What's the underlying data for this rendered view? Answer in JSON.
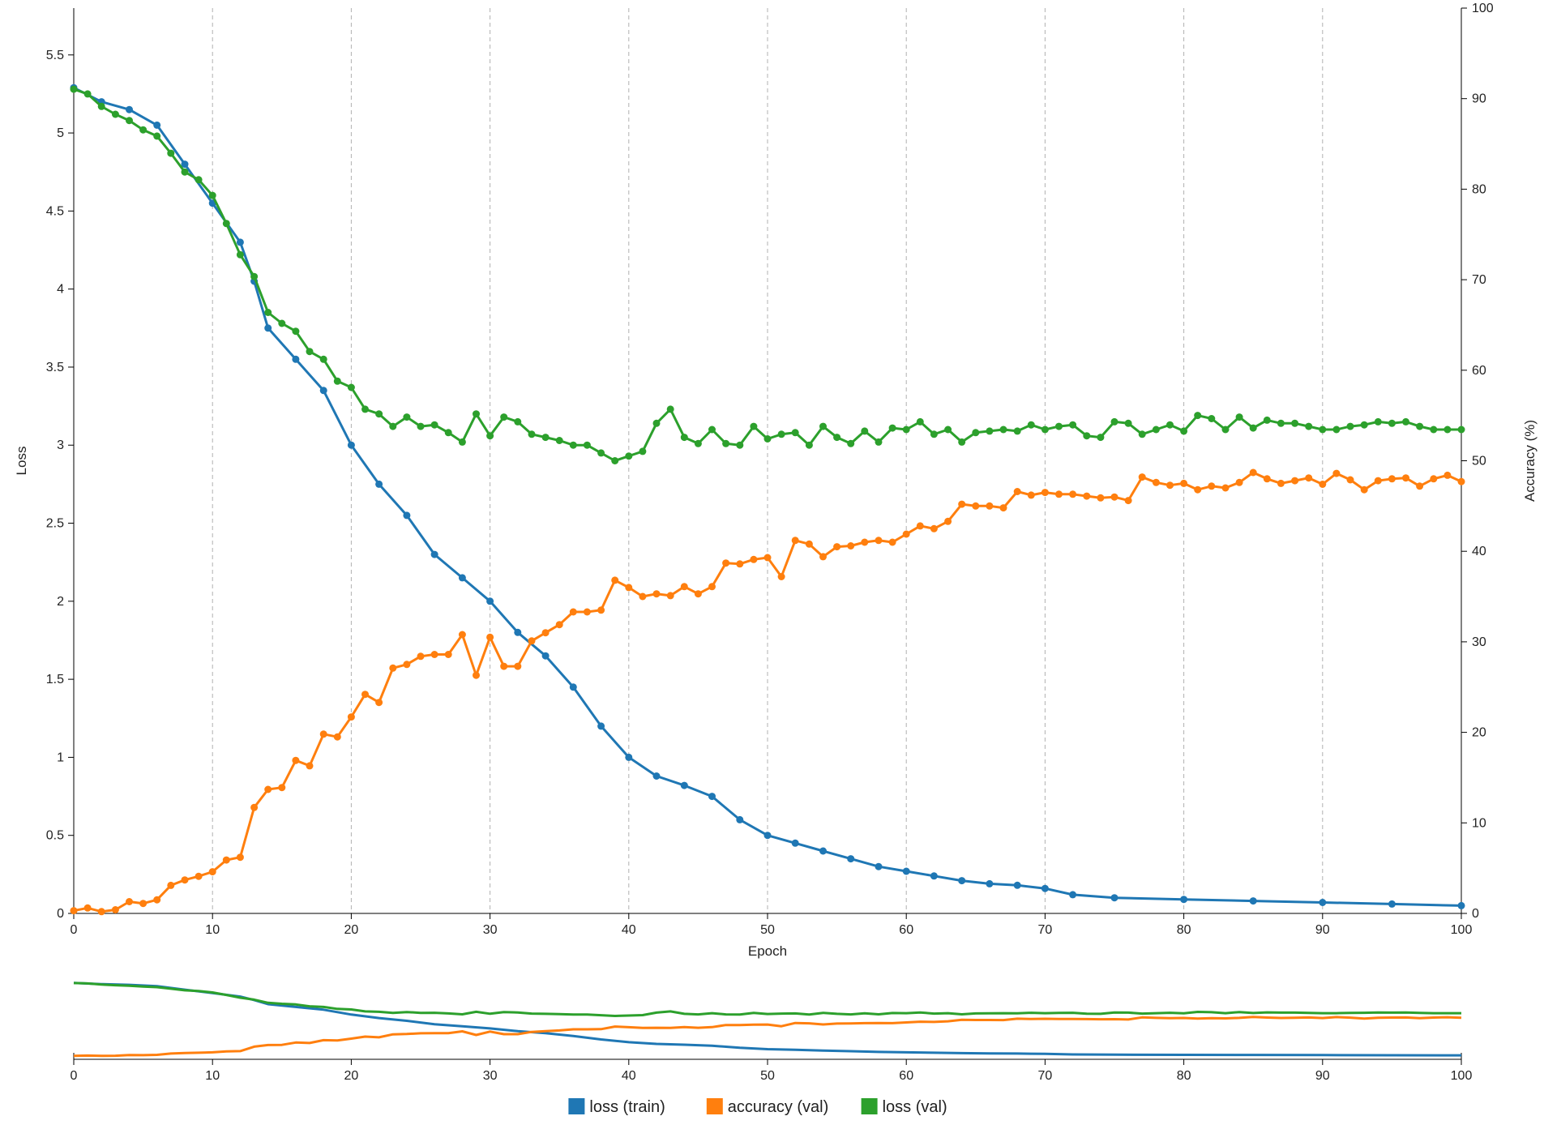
{
  "chart_data": {
    "type": "line",
    "xlabel": "Epoch",
    "ylabel_left": "Loss",
    "ylabel_right": "Accuracy (%)",
    "xlim": [
      0,
      100
    ],
    "ylim_left": [
      0,
      5.8
    ],
    "ylim_right": [
      0,
      100
    ],
    "x_ticks": [
      0,
      10,
      20,
      30,
      40,
      50,
      60,
      70,
      80,
      90,
      100
    ],
    "y_left_ticks": [
      0,
      0.5,
      1,
      1.5,
      2,
      2.5,
      3,
      3.5,
      4,
      4.5,
      5,
      5.5
    ],
    "y_left_tick_labels": [
      "0",
      "0.5",
      "1",
      "1.5",
      "2",
      "2.5",
      "3",
      "3.5",
      "4",
      "4.5",
      "5",
      "5.5"
    ],
    "y_right_ticks": [
      0,
      10,
      20,
      30,
      40,
      50,
      60,
      70,
      80,
      90,
      100
    ],
    "grid": "vertical dashed lines at x ticks",
    "legend_position": "bottom-center",
    "colors": {
      "loss_train": "#1f77b4",
      "accuracy_val": "#ff7f0e",
      "loss_val": "#2ca02c"
    },
    "series": [
      {
        "name": "loss (train)",
        "axis": "left",
        "x": [
          0,
          2,
          4,
          6,
          8,
          10,
          12,
          13,
          14,
          16,
          18,
          20,
          22,
          24,
          26,
          28,
          30,
          32,
          34,
          36,
          38,
          40,
          42,
          44,
          46,
          48,
          50,
          52,
          54,
          56,
          58,
          60,
          62,
          64,
          66,
          68,
          70,
          72,
          75,
          80,
          85,
          90,
          95,
          100
        ],
        "y": [
          5.29,
          5.2,
          5.15,
          5.05,
          4.8,
          4.55,
          4.3,
          4.05,
          3.75,
          3.55,
          3.35,
          3.0,
          2.75,
          2.55,
          2.3,
          2.15,
          2.0,
          1.8,
          1.65,
          1.45,
          1.2,
          1.0,
          0.88,
          0.82,
          0.75,
          0.6,
          0.5,
          0.45,
          0.4,
          0.35,
          0.3,
          0.27,
          0.24,
          0.21,
          0.19,
          0.18,
          0.16,
          0.12,
          0.1,
          0.09,
          0.08,
          0.07,
          0.06,
          0.05
        ]
      },
      {
        "name": "accuracy (val)",
        "axis": "right",
        "x": [
          0,
          1,
          2,
          3,
          4,
          5,
          6,
          7,
          8,
          9,
          10,
          11,
          12,
          13,
          14,
          15,
          16,
          17,
          18,
          19,
          20,
          21,
          22,
          23,
          24,
          25,
          26,
          27,
          28,
          29,
          30,
          31,
          32,
          33,
          34,
          35,
          36,
          37,
          38,
          39,
          40,
          41,
          42,
          43,
          44,
          45,
          46,
          47,
          48,
          49,
          50,
          51,
          52,
          53,
          54,
          55,
          56,
          57,
          58,
          59,
          60,
          61,
          62,
          63,
          64,
          65,
          66,
          67,
          68,
          69,
          70,
          71,
          72,
          73,
          74,
          75,
          76,
          77,
          78,
          79,
          80,
          81,
          82,
          83,
          84,
          85,
          86,
          87,
          88,
          89,
          90,
          91,
          92,
          93,
          94,
          95,
          96,
          97,
          98,
          99,
          100
        ],
        "y": [
          0.3,
          0.6,
          0.2,
          0.4,
          1.3,
          1.1,
          1.5,
          3.1,
          3.7,
          4.1,
          4.6,
          5.9,
          6.2,
          11.7,
          13.7,
          13.9,
          16.9,
          16.3,
          19.8,
          19.5,
          21.7,
          24.2,
          23.3,
          27.1,
          27.5,
          28.4,
          28.6,
          28.6,
          30.8,
          26.3,
          30.5,
          27.3,
          27.3,
          30.1,
          31.0,
          31.9,
          33.3,
          33.3,
          33.5,
          36.8,
          36.0,
          35.0,
          35.3,
          35.1,
          36.1,
          35.3,
          36.1,
          38.7,
          38.6,
          39.1,
          39.3,
          37.2,
          41.2,
          40.8,
          39.4,
          40.5,
          40.6,
          41.0,
          41.2,
          41.0,
          41.9,
          42.8,
          42.5,
          43.3,
          45.2,
          45.0,
          45.0,
          44.8,
          46.6,
          46.2,
          46.5,
          46.3,
          46.3,
          46.1,
          45.9,
          46.0,
          45.6,
          48.2,
          47.6,
          47.3,
          47.5,
          46.8,
          47.2,
          47.0,
          47.6,
          48.7,
          48.0,
          47.5,
          47.8,
          48.1,
          47.4,
          48.6,
          47.9,
          46.8,
          47.8,
          48.0,
          48.1,
          47.2,
          48.0,
          48.4,
          47.7
        ]
      },
      {
        "name": "loss (val)",
        "axis": "left",
        "x": [
          0,
          1,
          2,
          3,
          4,
          5,
          6,
          7,
          8,
          9,
          10,
          11,
          12,
          13,
          14,
          15,
          16,
          17,
          18,
          19,
          20,
          21,
          22,
          23,
          24,
          25,
          26,
          27,
          28,
          29,
          30,
          31,
          32,
          33,
          34,
          35,
          36,
          37,
          38,
          39,
          40,
          41,
          42,
          43,
          44,
          45,
          46,
          47,
          48,
          49,
          50,
          51,
          52,
          53,
          54,
          55,
          56,
          57,
          58,
          59,
          60,
          61,
          62,
          63,
          64,
          65,
          66,
          67,
          68,
          69,
          70,
          71,
          72,
          73,
          74,
          75,
          76,
          77,
          78,
          79,
          80,
          81,
          82,
          83,
          84,
          85,
          86,
          87,
          88,
          89,
          90,
          91,
          92,
          93,
          94,
          95,
          96,
          97,
          98,
          99,
          100
        ],
        "y": [
          5.28,
          5.25,
          5.17,
          5.12,
          5.08,
          5.02,
          4.98,
          4.87,
          4.75,
          4.7,
          4.6,
          4.42,
          4.22,
          4.08,
          3.85,
          3.78,
          3.73,
          3.6,
          3.55,
          3.41,
          3.37,
          3.23,
          3.2,
          3.12,
          3.18,
          3.12,
          3.13,
          3.08,
          3.02,
          3.2,
          3.06,
          3.18,
          3.15,
          3.07,
          3.05,
          3.03,
          3.0,
          3.0,
          2.95,
          2.9,
          2.93,
          2.96,
          3.14,
          3.23,
          3.05,
          3.01,
          3.1,
          3.01,
          3.0,
          3.12,
          3.04,
          3.07,
          3.08,
          3.0,
          3.12,
          3.05,
          3.01,
          3.09,
          3.02,
          3.11,
          3.1,
          3.15,
          3.07,
          3.1,
          3.02,
          3.08,
          3.09,
          3.1,
          3.09,
          3.13,
          3.1,
          3.12,
          3.13,
          3.06,
          3.05,
          3.15,
          3.14,
          3.07,
          3.1,
          3.13,
          3.09,
          3.19,
          3.17,
          3.1,
          3.18,
          3.11,
          3.16,
          3.14,
          3.14,
          3.12,
          3.1,
          3.1,
          3.12,
          3.13,
          3.15,
          3.14,
          3.15,
          3.12,
          3.1,
          3.1,
          3.1
        ]
      }
    ]
  }
}
